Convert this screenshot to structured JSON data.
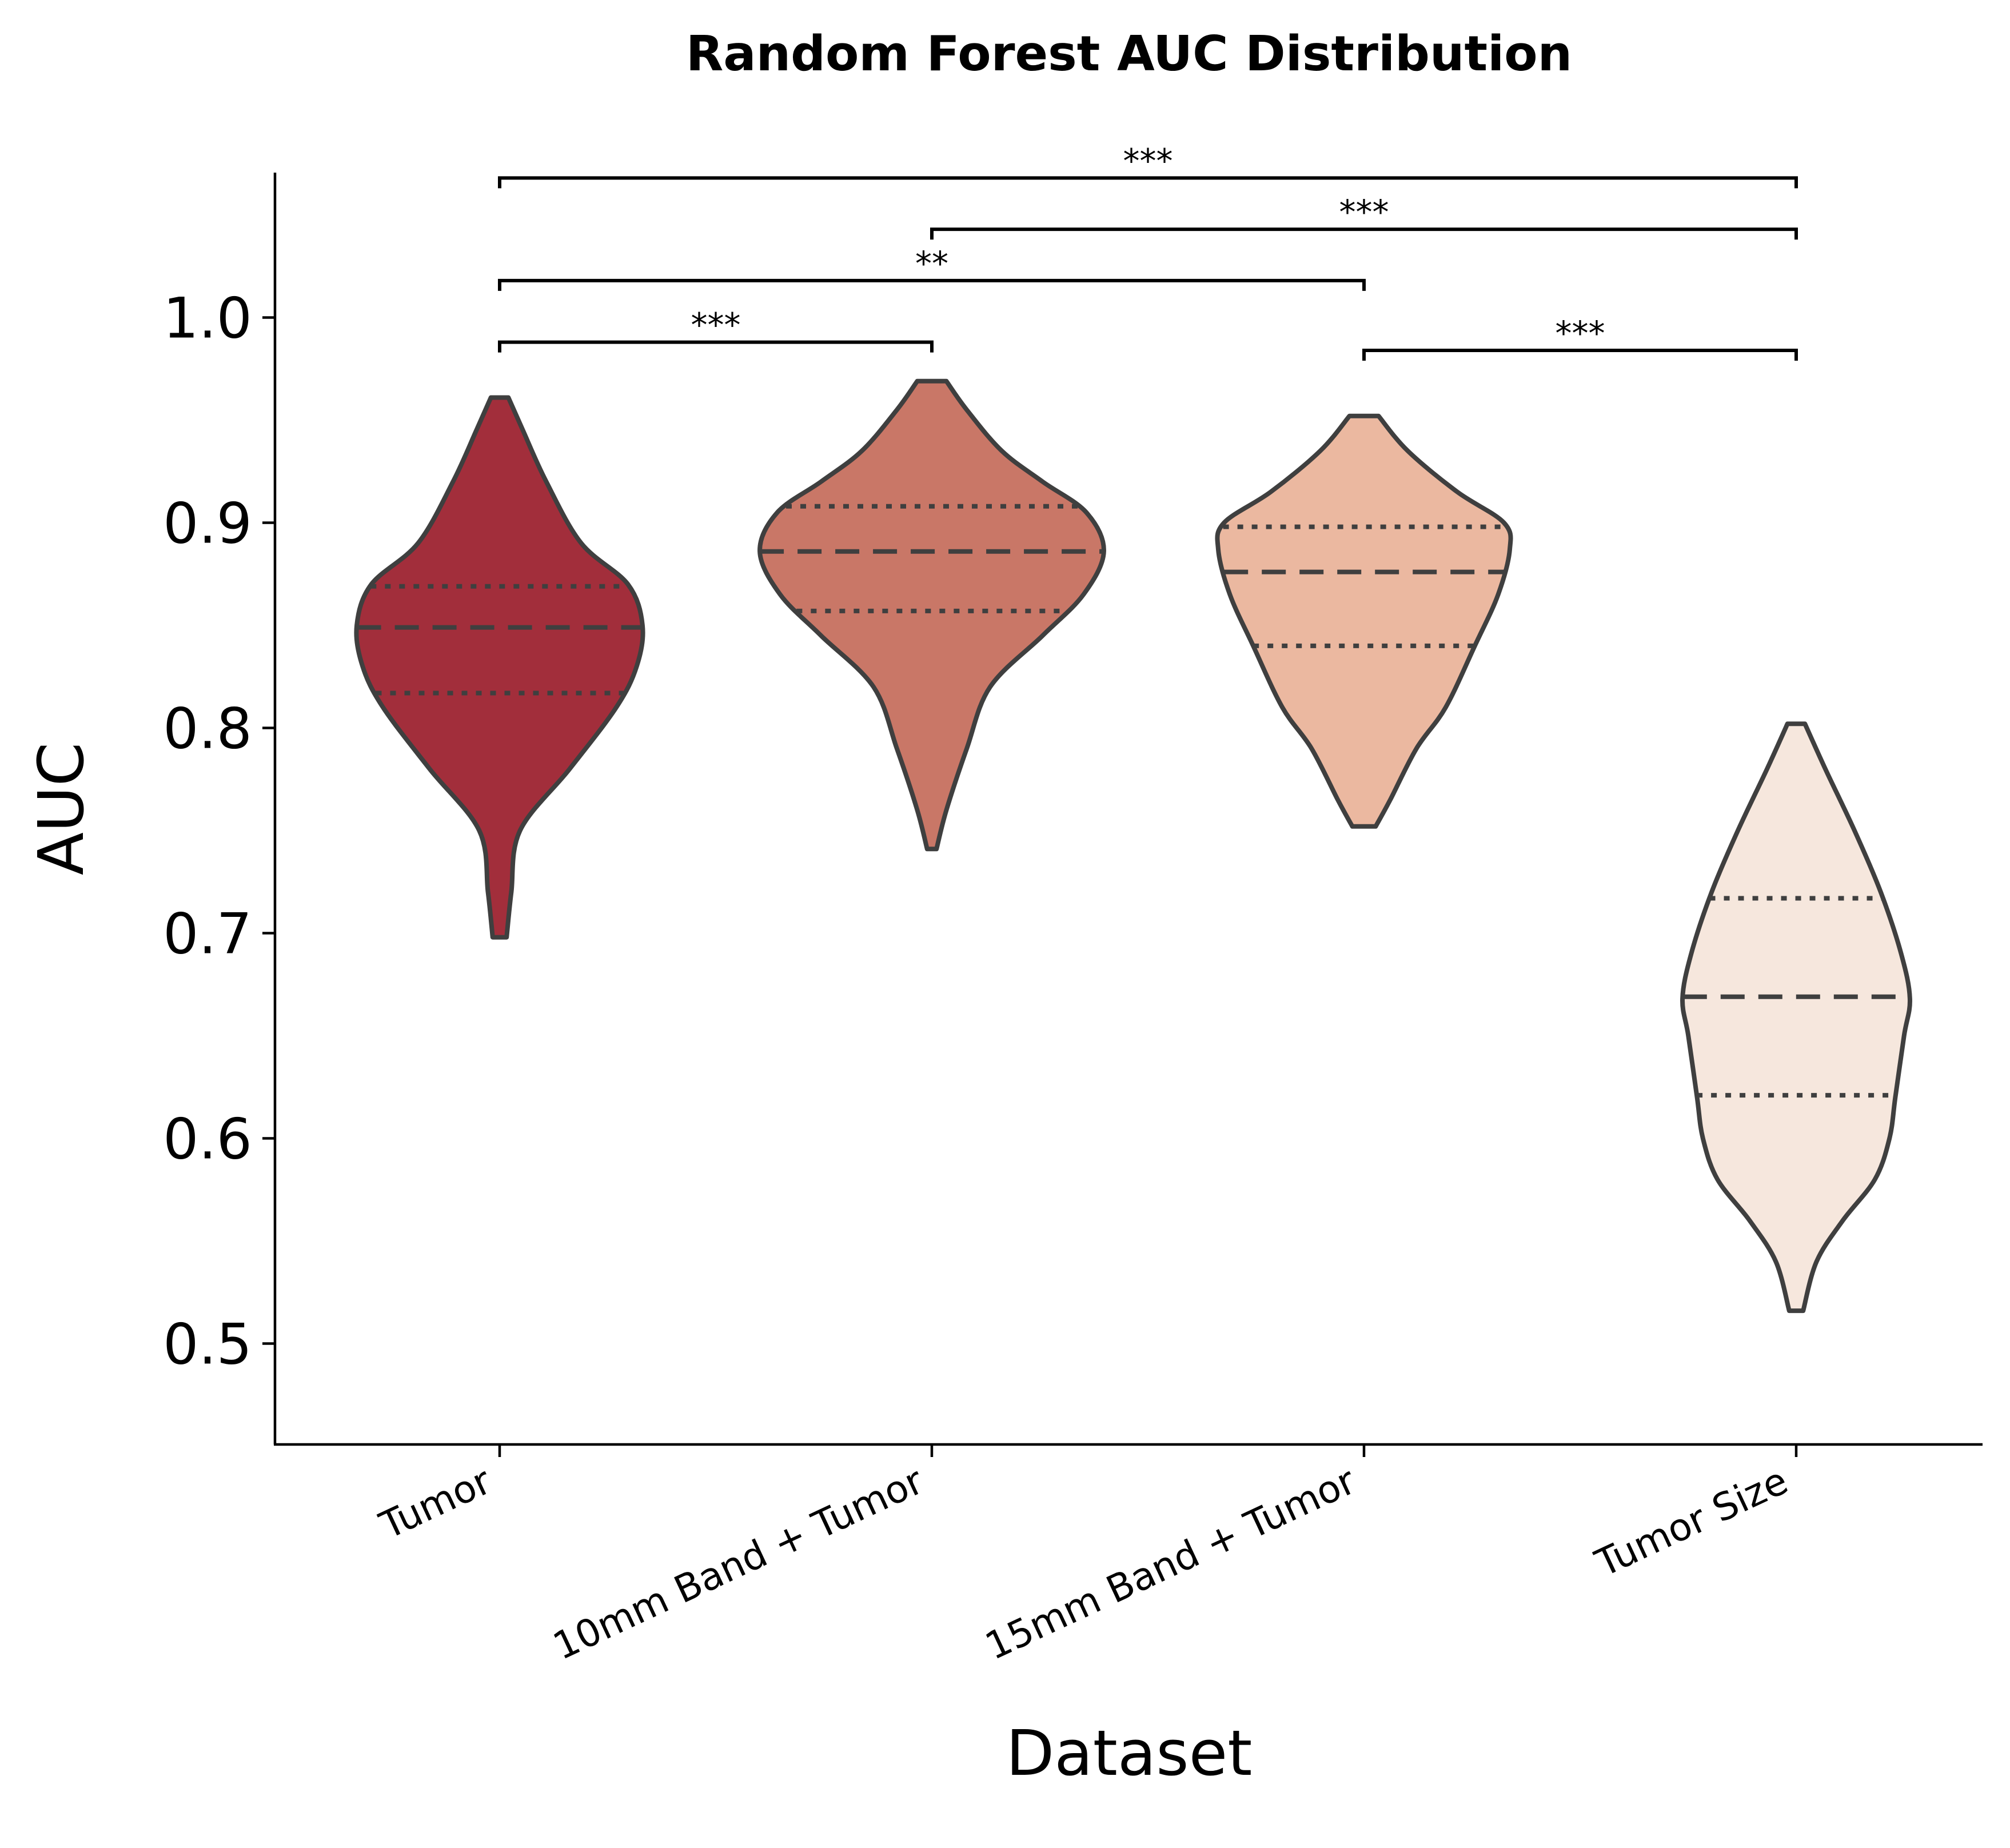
{
  "chart_data": {
    "type": "violin",
    "title": "Random Forest AUC Distribution",
    "xlabel": "Dataset",
    "ylabel": "AUC",
    "ylim": [
      0.45,
      1.07
    ],
    "yticks": [
      "0.5",
      "0.6",
      "0.7",
      "0.8",
      "0.9",
      "1.0"
    ],
    "grid": false,
    "categories": [
      "Tumor",
      "10mm Band + Tumor",
      "15mm Band + Tumor",
      "Tumor Size"
    ],
    "colors": [
      "#a22e3b",
      "#c97767",
      "#ebb8a0",
      "#f6e7dd"
    ],
    "edge_color": "#3f3f3f",
    "violins": [
      {
        "min": 0.698,
        "max": 0.961,
        "q1": 0.817,
        "median": 0.849,
        "q3": 0.869,
        "profile": [
          [
            0.698,
            0.012
          ],
          [
            0.72,
            0.02
          ],
          [
            0.75,
            0.035
          ],
          [
            0.78,
            0.12
          ],
          [
            0.81,
            0.2
          ],
          [
            0.83,
            0.235
          ],
          [
            0.85,
            0.245
          ],
          [
            0.87,
            0.22
          ],
          [
            0.89,
            0.14
          ],
          [
            0.92,
            0.08
          ],
          [
            0.945,
            0.04
          ],
          [
            0.961,
            0.015
          ]
        ]
      },
      {
        "min": 0.741,
        "max": 0.969,
        "q1": 0.857,
        "median": 0.886,
        "q3": 0.908,
        "profile": [
          [
            0.741,
            0.008
          ],
          [
            0.76,
            0.025
          ],
          [
            0.79,
            0.06
          ],
          [
            0.82,
            0.1
          ],
          [
            0.845,
            0.19
          ],
          [
            0.865,
            0.26
          ],
          [
            0.886,
            0.295
          ],
          [
            0.905,
            0.265
          ],
          [
            0.92,
            0.19
          ],
          [
            0.935,
            0.12
          ],
          [
            0.955,
            0.06
          ],
          [
            0.969,
            0.025
          ]
        ]
      },
      {
        "min": 0.752,
        "max": 0.952,
        "q1": 0.84,
        "median": 0.876,
        "q3": 0.898,
        "profile": [
          [
            0.752,
            0.02
          ],
          [
            0.765,
            0.045
          ],
          [
            0.79,
            0.09
          ],
          [
            0.81,
            0.14
          ],
          [
            0.84,
            0.19
          ],
          [
            0.865,
            0.23
          ],
          [
            0.887,
            0.25
          ],
          [
            0.9,
            0.24
          ],
          [
            0.915,
            0.16
          ],
          [
            0.935,
            0.075
          ],
          [
            0.952,
            0.025
          ]
        ]
      },
      {
        "min": 0.516,
        "max": 0.802,
        "q1": 0.621,
        "median": 0.669,
        "q3": 0.717,
        "profile": [
          [
            0.516,
            0.012
          ],
          [
            0.54,
            0.035
          ],
          [
            0.56,
            0.08
          ],
          [
            0.58,
            0.135
          ],
          [
            0.6,
            0.16
          ],
          [
            0.62,
            0.17
          ],
          [
            0.65,
            0.185
          ],
          [
            0.668,
            0.195
          ],
          [
            0.69,
            0.18
          ],
          [
            0.72,
            0.145
          ],
          [
            0.75,
            0.1
          ],
          [
            0.78,
            0.05
          ],
          [
            0.802,
            0.015
          ]
        ]
      }
    ],
    "significance": [
      {
        "from": 0,
        "to": 3,
        "y": 1.068,
        "label": "***"
      },
      {
        "from": 1,
        "to": 3,
        "y": 1.043,
        "label": "***"
      },
      {
        "from": 0,
        "to": 2,
        "y": 1.018,
        "label": "**"
      },
      {
        "from": 0,
        "to": 1,
        "y": 0.988,
        "label": "***"
      },
      {
        "from": 2,
        "to": 3,
        "y": 0.984,
        "label": "***"
      }
    ]
  }
}
